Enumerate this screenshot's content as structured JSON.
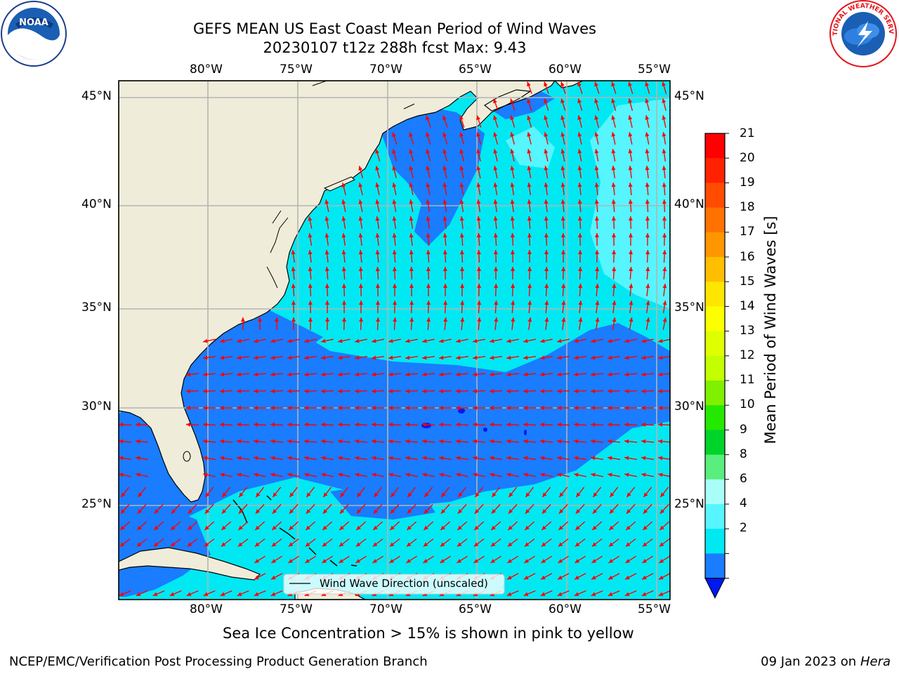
{
  "title": {
    "line1": "GEFS MEAN US East Coast Mean Period of Wind Waves",
    "line2": "20230107 t12z 288h fcst   Max: 9.43"
  },
  "map": {
    "lon_labels": [
      "80°W",
      "75°W",
      "70°W",
      "65°W",
      "60°W",
      "55°W"
    ],
    "lat_labels": [
      "45°N",
      "40°N",
      "35°N",
      "30°N",
      "25°N"
    ],
    "colors": {
      "land": "#efedd9",
      "ocean_2_4": "#1a7cff",
      "ocean_4_6": "#00e8f2",
      "ocean_6_8": "#56f5ff",
      "below_2": "#0018f0",
      "arrow": "#ff0000",
      "grid": "#b4b4b4",
      "coast": "#000000"
    },
    "legend_label": "Wind Wave Direction (unscaled)"
  },
  "colorbar": {
    "label": "Mean Period of Wind Waves [s]",
    "ticks": [
      "21",
      "20",
      "19",
      "18",
      "17",
      "16",
      "15",
      "14",
      "13",
      "12",
      "11",
      "10",
      "9",
      "8",
      "6",
      "4",
      "2"
    ],
    "colors": [
      "#ff0000",
      "#ff2200",
      "#ff4c00",
      "#ff7200",
      "#ff9600",
      "#ffbe00",
      "#ffe600",
      "#fbff00",
      "#dfff00",
      "#c3ff00",
      "#7ff000",
      "#25e800",
      "#00d42a",
      "#5aee7e",
      "#a8fff8",
      "#56f5ff",
      "#00e8f2",
      "#1a7cff"
    ],
    "under_color": "#0018f0"
  },
  "logos": {
    "noaa_text": "NOAA",
    "nws_text": "NATIONAL WEATHER SERVICE"
  },
  "footer": {
    "note": "Sea Ice Concentration > 15% is shown in pink to yellow",
    "credit": "NCEP/EMC/Verification Post Processing Product Generation Branch",
    "date": "09 Jan 2023 on",
    "host": "Hera"
  }
}
